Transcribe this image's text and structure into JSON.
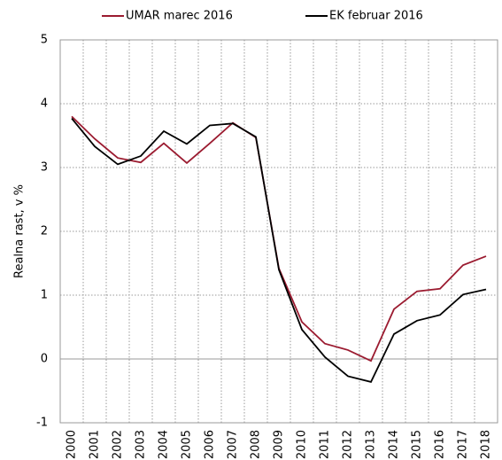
{
  "chart_data": {
    "type": "line",
    "y_label": "Realna rast, v %",
    "categories": [
      "2000",
      "2001",
      "2002",
      "2003",
      "2004",
      "2005",
      "2006",
      "2007",
      "2008",
      "2009",
      "2010",
      "2011",
      "2012",
      "2013",
      "2014",
      "2015",
      "2016",
      "2017",
      "2018"
    ],
    "series": [
      {
        "name": "UMAR marec 2016",
        "color": "#9b1b30",
        "values": [
          3.8,
          3.45,
          3.15,
          3.08,
          3.38,
          3.07,
          3.38,
          3.7,
          3.47,
          1.42,
          0.58,
          0.24,
          0.14,
          -0.03,
          0.78,
          1.06,
          1.1,
          1.47,
          1.61
        ]
      },
      {
        "name": "EK februar 2016",
        "color": "#000000",
        "values": [
          3.77,
          3.33,
          3.05,
          3.18,
          3.57,
          3.37,
          3.66,
          3.69,
          3.48,
          1.4,
          0.46,
          0.03,
          -0.27,
          -0.36,
          0.39,
          0.6,
          0.69,
          1.01,
          1.09
        ]
      }
    ],
    "ylim": [
      -1,
      5
    ],
    "yticks": [
      -1,
      0,
      1,
      2,
      3,
      4,
      5
    ],
    "grid": true,
    "legend": "top"
  }
}
